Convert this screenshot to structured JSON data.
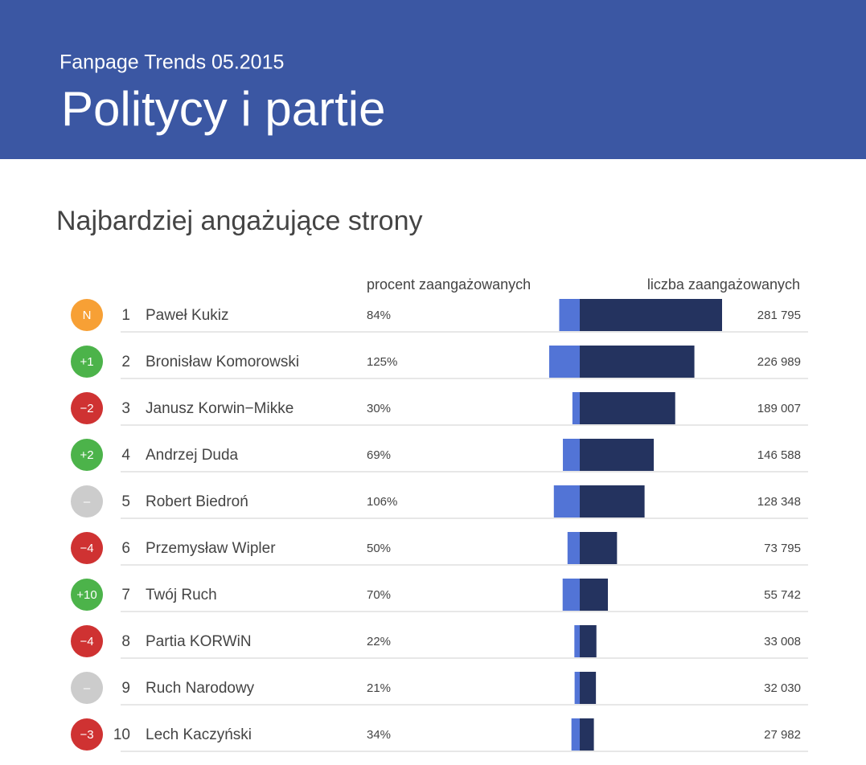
{
  "header": {
    "kicker": "Fanpage Trends 05.2015",
    "title": "Politycy i partie"
  },
  "chart_data": {
    "type": "diverging-bar",
    "title": "Najbardziej angażujące strony",
    "categories": [
      "Paweł Kukiz",
      "Bronisław Komorowski",
      "Janusz Korwin−Mikke",
      "Andrzej Duda",
      "Robert Biedroń",
      "Przemysław Wipler",
      "Twój Ruch",
      "Partia KORWiN",
      "Ruch Narodowy",
      "Lech Kaczyński"
    ],
    "ranks": [
      1,
      2,
      3,
      4,
      5,
      6,
      7,
      8,
      9,
      10
    ],
    "changes": [
      "N",
      "+1",
      "−2",
      "+2",
      "–",
      "−4",
      "+10",
      "−4",
      "–",
      "−3"
    ],
    "change_colors": [
      "#f7a035",
      "#4cb34a",
      "#cf3232",
      "#4cb34a",
      "#cccccc",
      "#cf3232",
      "#4cb34a",
      "#cf3232",
      "#cccccc",
      "#cf3232"
    ],
    "series": [
      {
        "name": "procent zaangażowanych",
        "color": "#5274d6",
        "values": [
          84,
          125,
          30,
          69,
          106,
          50,
          70,
          22,
          21,
          34
        ],
        "value_labels": [
          "84%",
          "125%",
          "30%",
          "69%",
          "106%",
          "50%",
          "70%",
          "22%",
          "21%",
          "34%"
        ]
      },
      {
        "name": "liczba zaangażowanych",
        "color": "#24335f",
        "values": [
          281795,
          226989,
          189007,
          146588,
          128348,
          73795,
          55742,
          33008,
          32030,
          27982
        ],
        "value_labels": [
          "281 795",
          "226 989",
          "189 007",
          "146 588",
          "128 348",
          "73 795",
          "55 742",
          "33 008",
          "32 030",
          "27 982"
        ]
      }
    ]
  }
}
